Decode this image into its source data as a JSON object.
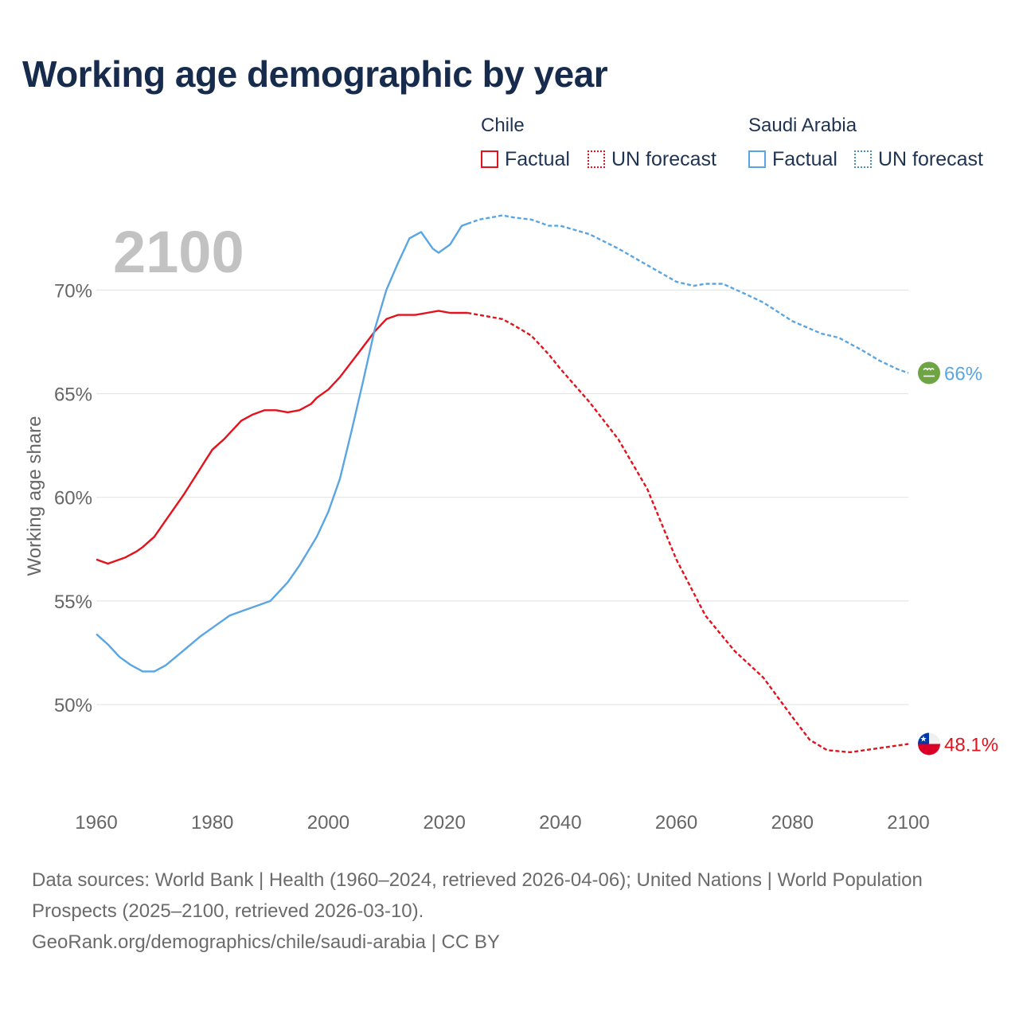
{
  "title": "Working age demographic by year",
  "legend": {
    "groups": [
      {
        "name": "Chile",
        "factual_label": "Factual",
        "forecast_label": "UN forecast",
        "color": "#e3121c"
      },
      {
        "name": "Saudi Arabia",
        "factual_label": "Factual",
        "forecast_label": "UN forecast",
        "color": "#5aa5e3"
      }
    ]
  },
  "chart_data": {
    "type": "line",
    "title": "Working age demographic by year",
    "year_label": "2100",
    "ylabel": "Working age share",
    "xlim": [
      1960,
      2100
    ],
    "ylim": [
      45.2,
      74.2
    ],
    "x_ticks": [
      "1960",
      "1980",
      "2000",
      "2020",
      "2040",
      "2060",
      "2080",
      "2100"
    ],
    "y_ticks": [
      "50%",
      "55%",
      "60%",
      "65%",
      "70%"
    ],
    "factual_end_year": 2024,
    "series": [
      {
        "name": "Chile",
        "color": "#e3121c",
        "end_label": "48.1%",
        "flag_icon": "chile-flag-icon",
        "points": [
          [
            1960,
            57.0
          ],
          [
            1962,
            56.8
          ],
          [
            1965,
            57.1
          ],
          [
            1967,
            57.4
          ],
          [
            1968,
            57.6
          ],
          [
            1970,
            58.1
          ],
          [
            1972,
            58.9
          ],
          [
            1975,
            60.1
          ],
          [
            1980,
            62.3
          ],
          [
            1982,
            62.8
          ],
          [
            1985,
            63.7
          ],
          [
            1987,
            64.0
          ],
          [
            1989,
            64.2
          ],
          [
            1991,
            64.2
          ],
          [
            1993,
            64.1
          ],
          [
            1995,
            64.2
          ],
          [
            1997,
            64.5
          ],
          [
            1998,
            64.8
          ],
          [
            2000,
            65.2
          ],
          [
            2002,
            65.8
          ],
          [
            2005,
            66.9
          ],
          [
            2008,
            68.0
          ],
          [
            2010,
            68.6
          ],
          [
            2012,
            68.8
          ],
          [
            2015,
            68.8
          ],
          [
            2017,
            68.9
          ],
          [
            2019,
            69.0
          ],
          [
            2021,
            68.9
          ],
          [
            2024,
            68.9
          ],
          [
            2026,
            68.8
          ],
          [
            2028,
            68.7
          ],
          [
            2030,
            68.6
          ],
          [
            2032,
            68.3
          ],
          [
            2035,
            67.8
          ],
          [
            2038,
            66.9
          ],
          [
            2040,
            66.2
          ],
          [
            2045,
            64.6
          ],
          [
            2050,
            62.8
          ],
          [
            2055,
            60.4
          ],
          [
            2060,
            57.0
          ],
          [
            2065,
            54.3
          ],
          [
            2070,
            52.6
          ],
          [
            2075,
            51.3
          ],
          [
            2080,
            49.4
          ],
          [
            2083,
            48.3
          ],
          [
            2086,
            47.8
          ],
          [
            2090,
            47.7
          ],
          [
            2095,
            47.9
          ],
          [
            2100,
            48.1
          ]
        ]
      },
      {
        "name": "Saudi Arabia",
        "color": "#5aa5e3",
        "end_label": "66%",
        "flag_icon": "saudi-flag-icon",
        "points": [
          [
            1960,
            53.4
          ],
          [
            1962,
            52.9
          ],
          [
            1964,
            52.3
          ],
          [
            1966,
            51.9
          ],
          [
            1968,
            51.6
          ],
          [
            1970,
            51.6
          ],
          [
            1972,
            51.9
          ],
          [
            1975,
            52.6
          ],
          [
            1978,
            53.3
          ],
          [
            1980,
            53.7
          ],
          [
            1983,
            54.3
          ],
          [
            1986,
            54.6
          ],
          [
            1988,
            54.8
          ],
          [
            1990,
            55.0
          ],
          [
            1993,
            55.9
          ],
          [
            1995,
            56.7
          ],
          [
            1998,
            58.1
          ],
          [
            2000,
            59.3
          ],
          [
            2002,
            60.9
          ],
          [
            2004,
            63.2
          ],
          [
            2006,
            65.6
          ],
          [
            2008,
            68.1
          ],
          [
            2010,
            70.0
          ],
          [
            2012,
            71.3
          ],
          [
            2014,
            72.5
          ],
          [
            2016,
            72.8
          ],
          [
            2018,
            72.0
          ],
          [
            2019,
            71.8
          ],
          [
            2021,
            72.2
          ],
          [
            2023,
            73.1
          ],
          [
            2024,
            73.2
          ],
          [
            2026,
            73.4
          ],
          [
            2028,
            73.5
          ],
          [
            2030,
            73.6
          ],
          [
            2032,
            73.5
          ],
          [
            2035,
            73.4
          ],
          [
            2038,
            73.1
          ],
          [
            2040,
            73.1
          ],
          [
            2045,
            72.7
          ],
          [
            2050,
            72.0
          ],
          [
            2055,
            71.2
          ],
          [
            2060,
            70.4
          ],
          [
            2063,
            70.2
          ],
          [
            2065,
            70.3
          ],
          [
            2068,
            70.3
          ],
          [
            2072,
            69.8
          ],
          [
            2075,
            69.4
          ],
          [
            2080,
            68.5
          ],
          [
            2085,
            67.9
          ],
          [
            2088,
            67.7
          ],
          [
            2092,
            67.1
          ],
          [
            2095,
            66.6
          ],
          [
            2098,
            66.2
          ],
          [
            2100,
            66.0
          ]
        ]
      }
    ]
  },
  "footer": {
    "sources": "Data sources: World Bank | Health (1960–2024, retrieved 2026-04-06); United Nations | World Population Prospects (2025–2100, retrieved 2026-03-10).",
    "attribution": "GeoRank.org/demographics/chile/saudi-arabia | CC BY"
  }
}
